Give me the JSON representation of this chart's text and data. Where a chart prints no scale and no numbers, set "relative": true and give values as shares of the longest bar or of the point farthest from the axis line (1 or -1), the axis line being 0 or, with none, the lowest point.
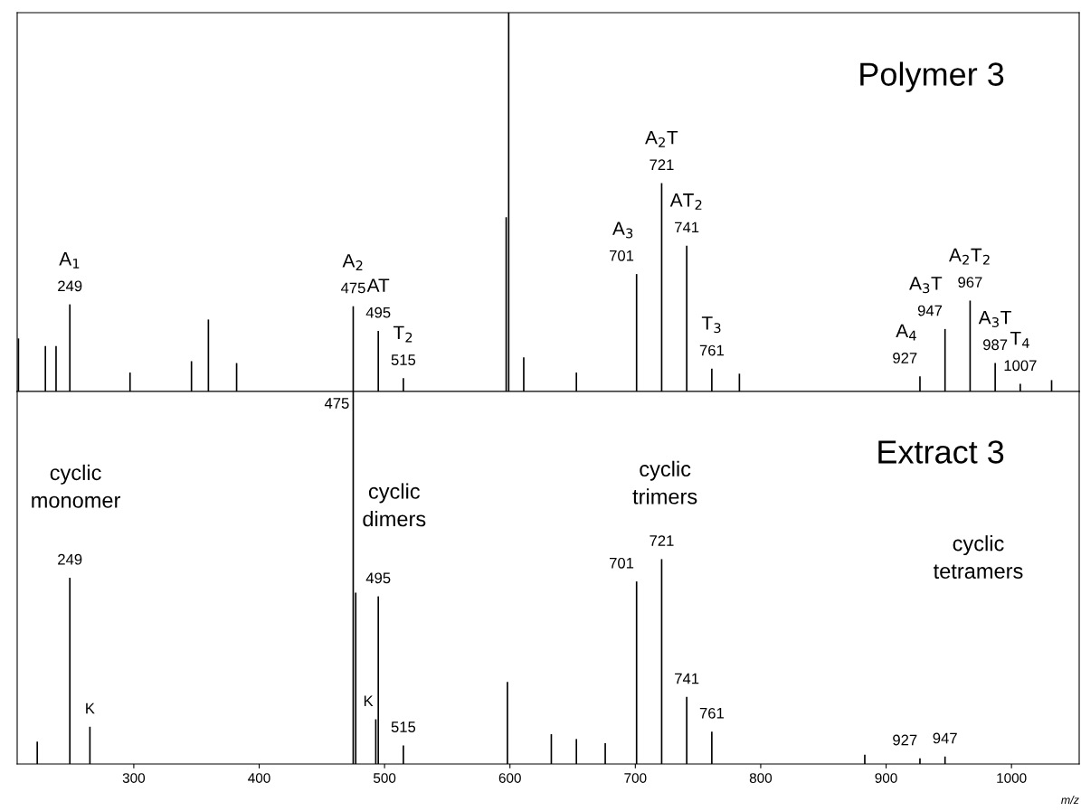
{
  "chart_data": [
    {
      "type": "bar",
      "title": "Polymer 3",
      "relative": true,
      "color": "#000000",
      "xlim": [
        207,
        1054
      ],
      "xticks": [
        300,
        400,
        500,
        600,
        700,
        800,
        900,
        1000
      ],
      "tick_labels": false,
      "x": [
        208,
        229.5,
        238,
        249,
        297,
        346,
        359.5,
        382,
        475,
        495,
        515,
        597,
        599,
        611,
        653,
        701,
        721,
        741,
        761,
        783,
        927,
        947,
        967,
        987,
        1007,
        1032
      ],
      "values": [
        0.14,
        0.12,
        0.12,
        0.23,
        0.05,
        0.08,
        0.19,
        0.075,
        0.225,
        0.16,
        0.035,
        0.46,
        1.0,
        0.09,
        0.05,
        0.31,
        0.55,
        0.385,
        0.06,
        0.047,
        0.04,
        0.165,
        0.24,
        0.075,
        0.02,
        0.03
      ],
      "annotations": [
        {
          "text": "249",
          "x": 249,
          "y": 0.23
        },
        {
          "text": "A$_{1}$",
          "x": 249,
          "y": 0.23
        },
        {
          "text": "475",
          "x": 475,
          "y": 0.225
        },
        {
          "text": "A$_{2}$",
          "x": 475,
          "y": 0.225
        },
        {
          "text": "495",
          "x": 495,
          "y": 0.16
        },
        {
          "text": "AT",
          "x": 495,
          "y": 0.16
        },
        {
          "text": "515",
          "x": 515,
          "y": 0.035
        },
        {
          "text": "T$_{2}$",
          "x": 515,
          "y": 0.035
        },
        {
          "text": "701",
          "x": 701,
          "y": 0.31
        },
        {
          "text": "A$_{3}$",
          "x": 701,
          "y": 0.31
        },
        {
          "text": "721",
          "x": 721,
          "y": 0.55
        },
        {
          "text": "A$_{2}$T",
          "x": 721,
          "y": 0.55
        },
        {
          "text": "741",
          "x": 741,
          "y": 0.385
        },
        {
          "text": "AT$_{2}$",
          "x": 741,
          "y": 0.385
        },
        {
          "text": "761",
          "x": 761,
          "y": 0.06
        },
        {
          "text": "T$_{3}$",
          "x": 761,
          "y": 0.06
        },
        {
          "text": "927",
          "x": 927,
          "y": 0.04
        },
        {
          "text": "A$_{4}$",
          "x": 927,
          "y": 0.04
        },
        {
          "text": "947",
          "x": 947,
          "y": 0.165
        },
        {
          "text": "A$_{3}$T",
          "x": 947,
          "y": 0.165
        },
        {
          "text": "967",
          "x": 967,
          "y": 0.24
        },
        {
          "text": "A$_{2}$T$_{2}$",
          "x": 967,
          "y": 0.24
        },
        {
          "text": "987",
          "x": 987,
          "y": 0.075
        },
        {
          "text": "A$_{3}$T",
          "x": 987,
          "y": 0.075
        },
        {
          "text": "1007",
          "x": 1007,
          "y": 0.02
        },
        {
          "text": "T$_{4}$",
          "x": 1007,
          "y": 0.02
        }
      ]
    },
    {
      "type": "bar",
      "title": "Extract 3",
      "relative": true,
      "color": "#000000",
      "xlim": [
        207,
        1054
      ],
      "xticks": [
        300,
        400,
        500,
        600,
        700,
        800,
        900,
        1000
      ],
      "tick_labels": "x",
      "xlabel": "m/z",
      "x": [
        223,
        249,
        265,
        475,
        477,
        493,
        495,
        515,
        598,
        633,
        653,
        676,
        701,
        721,
        741,
        761,
        883,
        927,
        947
      ],
      "values": [
        0.06,
        0.5,
        0.1,
        1.0,
        0.46,
        0.12,
        0.45,
        0.05,
        0.22,
        0.08,
        0.067,
        0.056,
        0.49,
        0.55,
        0.18,
        0.087,
        0.025,
        0.015,
        0.02
      ],
      "annotations": [
        {
          "text": "249",
          "x": 249,
          "y": 0.5
        },
        {
          "text": "K",
          "x": 265,
          "y": 0.1
        },
        {
          "text": "475",
          "x": 475,
          "y": 1.0
        },
        {
          "text": "K",
          "x": 493,
          "y": 0.12
        },
        {
          "text": "495",
          "x": 495,
          "y": 0.45
        },
        {
          "text": "515",
          "x": 515,
          "y": 0.05
        },
        {
          "text": "701",
          "x": 701,
          "y": 0.49
        },
        {
          "text": "721",
          "x": 721,
          "y": 0.55
        },
        {
          "text": "741",
          "x": 741,
          "y": 0.18
        },
        {
          "text": "761",
          "x": 761,
          "y": 0.087
        },
        {
          "text": "927",
          "x": 927,
          "y": 0.015
        },
        {
          "text": "947",
          "x": 947,
          "y": 0.02
        },
        "cyclic\nmonomer",
        "cyclic\ndimers",
        "cyclic\ntrimers",
        "cyclic\ntetramers"
      ]
    }
  ]
}
